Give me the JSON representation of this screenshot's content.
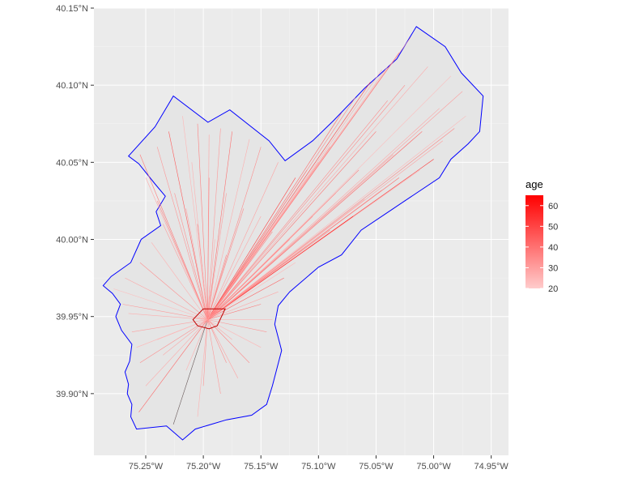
{
  "chart_data": {
    "type": "map",
    "title": "",
    "xlabel": "",
    "ylabel": "",
    "xlim": [
      -75.295,
      -74.935
    ],
    "ylim": [
      39.86,
      40.15
    ],
    "grid": true,
    "panel_background": "#ebebeb",
    "x_ticks": [
      {
        "value": -75.25,
        "label": "75.25°W"
      },
      {
        "value": -75.2,
        "label": "75.20°W"
      },
      {
        "value": -75.15,
        "label": "75.15°W"
      },
      {
        "value": -75.1,
        "label": "75.10°W"
      },
      {
        "value": -75.05,
        "label": "75.05°W"
      },
      {
        "value": -75.0,
        "label": "75.00°W"
      },
      {
        "value": -74.95,
        "label": "74.95°W"
      }
    ],
    "y_ticks": [
      {
        "value": 40.15,
        "label": "40.15°N"
      },
      {
        "value": 40.1,
        "label": "40.10°N"
      },
      {
        "value": 40.05,
        "label": "40.05°N"
      },
      {
        "value": 40.0,
        "label": "40.00°N"
      },
      {
        "value": 39.95,
        "label": "39.95°N"
      },
      {
        "value": 39.9,
        "label": "39.90°N"
      }
    ],
    "boundary": {
      "color": "#0000ff",
      "fill": "#e5e5e5",
      "coords": [
        [
          -75.015,
          40.138
        ],
        [
          -74.99,
          40.125
        ],
        [
          -74.976,
          40.108
        ],
        [
          -74.957,
          40.093
        ],
        [
          -74.96,
          40.07
        ],
        [
          -74.97,
          40.062
        ],
        [
          -74.985,
          40.052
        ],
        [
          -74.995,
          40.04
        ],
        [
          -75.035,
          40.02
        ],
        [
          -75.063,
          40.006
        ],
        [
          -75.08,
          39.99
        ],
        [
          -75.1,
          39.982
        ],
        [
          -75.125,
          39.966
        ],
        [
          -75.135,
          39.957
        ],
        [
          -75.138,
          39.945
        ],
        [
          -75.132,
          39.928
        ],
        [
          -75.14,
          39.905
        ],
        [
          -75.145,
          39.893
        ],
        [
          -75.158,
          39.886
        ],
        [
          -75.18,
          39.883
        ],
        [
          -75.207,
          39.877
        ],
        [
          -75.218,
          39.87
        ],
        [
          -75.232,
          39.879
        ],
        [
          -75.258,
          39.877
        ],
        [
          -75.263,
          39.885
        ],
        [
          -75.262,
          39.893
        ],
        [
          -75.266,
          39.9
        ],
        [
          -75.265,
          39.906
        ],
        [
          -75.268,
          39.914
        ],
        [
          -75.264,
          39.921
        ],
        [
          -75.262,
          39.932
        ],
        [
          -75.271,
          39.941
        ],
        [
          -75.276,
          39.95
        ],
        [
          -75.272,
          39.958
        ],
        [
          -75.279,
          39.965
        ],
        [
          -75.287,
          39.97
        ],
        [
          -75.28,
          39.976
        ],
        [
          -75.263,
          39.985
        ],
        [
          -75.254,
          40.0
        ],
        [
          -75.237,
          40.009
        ],
        [
          -75.241,
          40.018
        ],
        [
          -75.233,
          40.028
        ],
        [
          -75.242,
          40.036
        ],
        [
          -75.256,
          40.049
        ],
        [
          -75.265,
          40.054
        ],
        [
          -75.242,
          40.073
        ],
        [
          -75.226,
          40.093
        ],
        [
          -75.196,
          40.076
        ],
        [
          -75.177,
          40.084
        ],
        [
          -75.143,
          40.064
        ],
        [
          -75.129,
          40.051
        ],
        [
          -75.105,
          40.064
        ],
        [
          -75.087,
          40.077
        ],
        [
          -75.06,
          40.098
        ],
        [
          -75.032,
          40.117
        ]
      ]
    },
    "hub": {
      "color": "#c00000",
      "coords": [
        [
          -75.2,
          39.955
        ],
        [
          -75.181,
          39.955
        ],
        [
          -75.188,
          39.944
        ],
        [
          -75.195,
          39.942
        ],
        [
          -75.205,
          39.944
        ],
        [
          -75.209,
          39.948
        ]
      ]
    },
    "color_scale": {
      "variable": "age",
      "low": "#ffcccc",
      "high": "#ff0000",
      "min": 20,
      "max": 65,
      "breaks": [
        60,
        50,
        40,
        30,
        20
      ]
    },
    "segments": [
      [
        -75.02,
        40.131,
        32
      ],
      [
        -75.03,
        40.121,
        41
      ],
      [
        -75.04,
        40.112,
        28
      ],
      [
        -75.055,
        40.102,
        52
      ],
      [
        -75.068,
        40.092,
        37
      ],
      [
        -75.08,
        40.082,
        45
      ],
      [
        -75.005,
        40.112,
        29
      ],
      [
        -74.985,
        40.106,
        24
      ],
      [
        -74.975,
        40.096,
        33
      ],
      [
        -74.972,
        40.08,
        26
      ],
      [
        -74.982,
        40.072,
        38
      ],
      [
        -74.992,
        40.064,
        31
      ],
      [
        -75.0,
        40.052,
        58
      ],
      [
        -75.012,
        40.045,
        27
      ],
      [
        -75.03,
        40.04,
        44
      ],
      [
        -75.045,
        40.032,
        35
      ],
      [
        -75.06,
        40.026,
        30
      ],
      [
        -75.07,
        40.015,
        62
      ],
      [
        -75.09,
        40.006,
        39
      ],
      [
        -75.11,
        39.996,
        33
      ],
      [
        -75.12,
        39.985,
        25
      ],
      [
        -75.13,
        39.975,
        47
      ],
      [
        -75.135,
        39.966,
        29
      ],
      [
        -75.04,
        40.09,
        36
      ],
      [
        -75.05,
        40.07,
        42
      ],
      [
        -75.09,
        40.06,
        34
      ],
      [
        -75.1,
        40.05,
        27
      ],
      [
        -75.11,
        40.045,
        40
      ],
      [
        -75.12,
        40.04,
        55
      ],
      [
        -75.135,
        40.05,
        31
      ],
      [
        -75.15,
        40.06,
        36
      ],
      [
        -75.16,
        40.065,
        28
      ],
      [
        -75.175,
        40.07,
        43
      ],
      [
        -75.185,
        40.072,
        33
      ],
      [
        -75.195,
        40.068,
        30
      ],
      [
        -75.205,
        40.075,
        39
      ],
      [
        -75.218,
        40.08,
        26
      ],
      [
        -75.23,
        40.07,
        48
      ],
      [
        -75.24,
        40.06,
        34
      ],
      [
        -75.255,
        40.055,
        41
      ],
      [
        -75.25,
        40.04,
        29
      ],
      [
        -75.24,
        40.025,
        37
      ],
      [
        -75.235,
        40.01,
        32
      ],
      [
        -75.245,
        39.998,
        27
      ],
      [
        -75.255,
        39.985,
        35
      ],
      [
        -75.268,
        39.975,
        30
      ],
      [
        -75.278,
        39.968,
        24
      ],
      [
        -75.27,
        39.958,
        33
      ],
      [
        -75.265,
        39.952,
        28
      ],
      [
        -75.262,
        39.94,
        31
      ],
      [
        -75.258,
        39.93,
        26
      ],
      [
        -75.255,
        39.92,
        36
      ],
      [
        -75.25,
        39.905,
        29
      ],
      [
        -75.256,
        39.888,
        45
      ],
      [
        -75.226,
        39.88,
        64
      ],
      [
        -75.205,
        39.885,
        27
      ],
      [
        -75.185,
        39.9,
        33
      ],
      [
        -75.17,
        39.91,
        30
      ],
      [
        -75.16,
        39.92,
        38
      ],
      [
        -75.15,
        39.93,
        26
      ],
      [
        -75.145,
        39.94,
        34
      ],
      [
        -75.14,
        39.948,
        29
      ],
      [
        -75.15,
        39.958,
        41
      ],
      [
        -75.17,
        39.975,
        33
      ],
      [
        -75.18,
        39.99,
        37
      ],
      [
        -75.19,
        40.0,
        28
      ],
      [
        -75.205,
        40.01,
        44
      ],
      [
        -75.215,
        40.02,
        30
      ],
      [
        -75.225,
        40.03,
        35
      ],
      [
        -75.21,
        40.05,
        27
      ],
      [
        -75.195,
        40.04,
        39
      ],
      [
        -75.18,
        40.03,
        32
      ],
      [
        -75.165,
        40.02,
        36
      ],
      [
        -75.15,
        40.015,
        29
      ],
      [
        -75.14,
        40.005,
        42
      ],
      [
        -75.125,
        40.0,
        31
      ],
      [
        -75.105,
        40.015,
        34
      ],
      [
        -75.085,
        40.03,
        27
      ],
      [
        -75.065,
        40.045,
        38
      ],
      [
        -75.035,
        40.055,
        33
      ],
      [
        -75.01,
        40.07,
        46
      ],
      [
        -74.995,
        40.085,
        30
      ],
      [
        -75.025,
        40.1,
        37
      ],
      [
        -75.045,
        40.11,
        28
      ],
      [
        -75.2,
        39.905,
        33
      ],
      [
        -75.215,
        39.915,
        27
      ],
      [
        -75.235,
        39.925,
        31
      ],
      [
        -75.24,
        39.935,
        25
      ],
      [
        -75.18,
        39.92,
        36
      ],
      [
        -75.175,
        39.935,
        30
      ]
    ]
  }
}
